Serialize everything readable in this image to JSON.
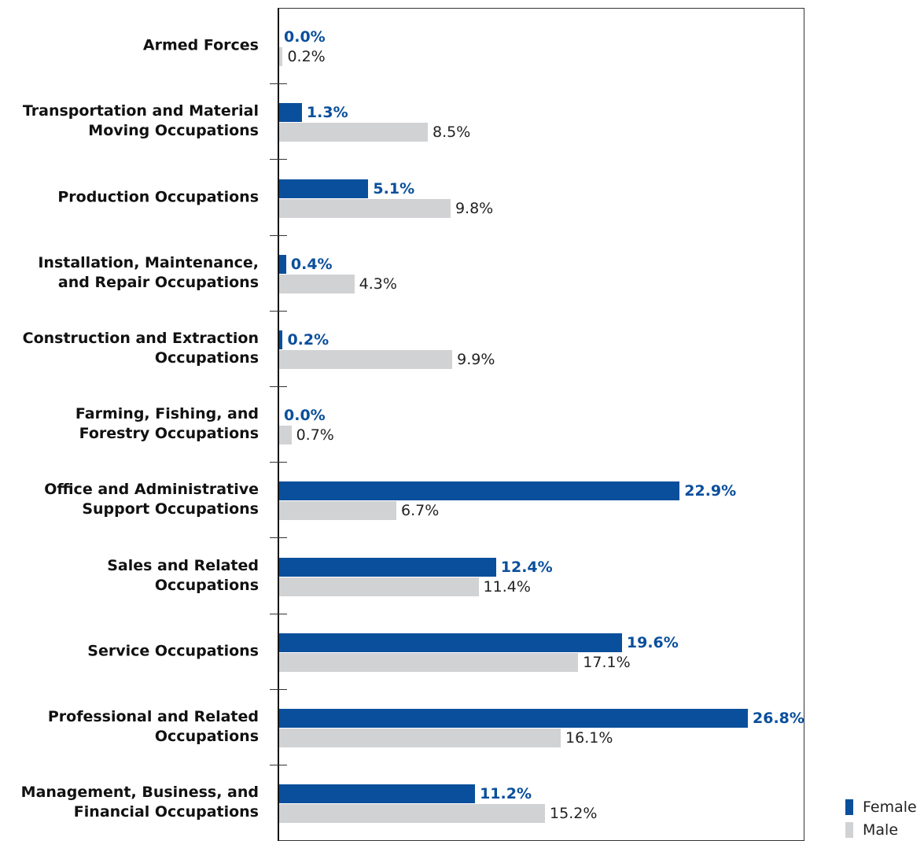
{
  "chart_data": {
    "type": "bar",
    "orientation": "horizontal",
    "categories": [
      "Armed Forces",
      "Transportation and Material\nMoving Occupations",
      "Production Occupations",
      "Installation, Maintenance,\nand Repair Occupations",
      "Construction and Extraction\nOccupations",
      "Farming, Fishing, and\nForestry Occupations",
      "Office and Administrative\nSupport Occupations",
      "Sales and Related Occupations",
      "Service Occupations",
      "Professional and Related\nOccupations",
      "Management, Business, and\nFinancial Occupations"
    ],
    "series": [
      {
        "name": "Female",
        "color": "#0a4f9c",
        "values": [
          0.0,
          1.3,
          5.1,
          0.4,
          0.2,
          0.0,
          22.9,
          12.4,
          19.6,
          26.8,
          11.2
        ],
        "value_labels": [
          "0.0%",
          "1.3%",
          "5.1%",
          "0.4%",
          "0.2%",
          "0.0%",
          "22.9%",
          "12.4%",
          "19.6%",
          "26.8%",
          "11.2%"
        ]
      },
      {
        "name": "Male",
        "color": "#d1d2d4",
        "values": [
          0.2,
          8.5,
          9.8,
          4.3,
          9.9,
          0.7,
          6.7,
          11.4,
          17.1,
          16.1,
          15.2
        ],
        "value_labels": [
          "0.2%",
          "8.5%",
          "9.8%",
          "4.3%",
          "9.9%",
          "0.7%",
          "6.7%",
          "11.4%",
          "17.1%",
          "16.1%",
          "15.2%"
        ]
      }
    ],
    "legend": "bottom-right"
  }
}
